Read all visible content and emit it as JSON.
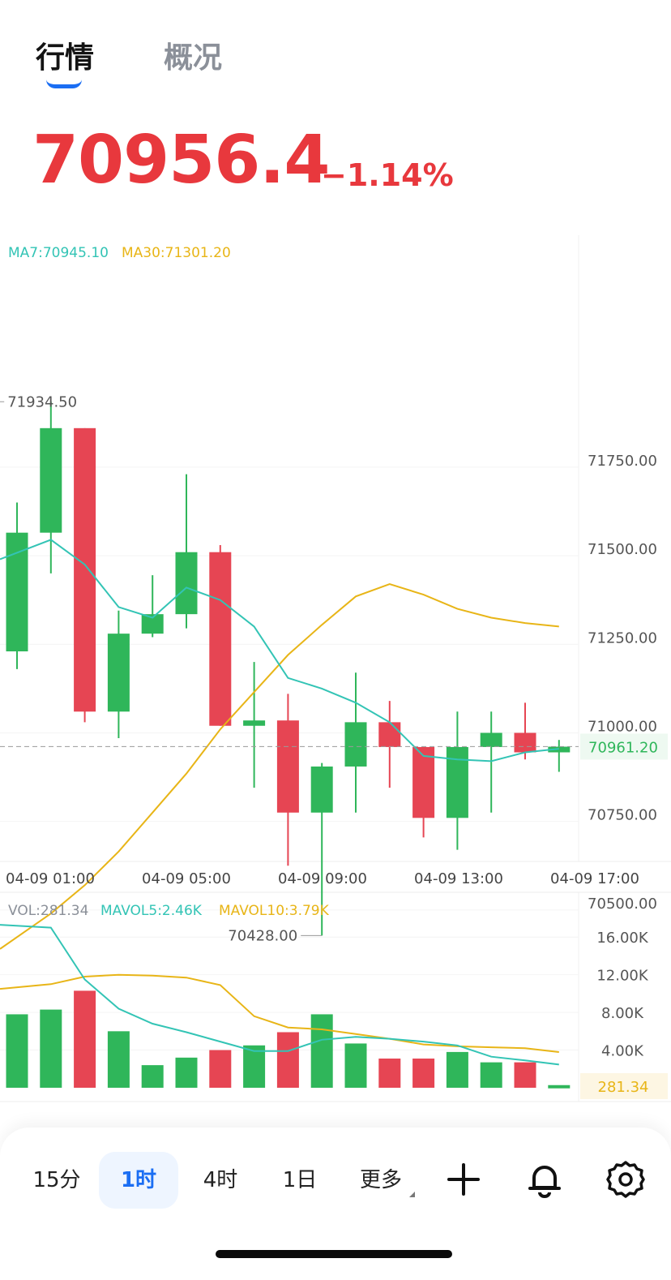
{
  "tabs": {
    "active": "行情",
    "inactive": "概况"
  },
  "price": {
    "last": "70956.4",
    "change": "−1.14%"
  },
  "colors": {
    "up": "#2fb65a",
    "down": "#e64553",
    "ma7": "#33c4b5",
    "ma30": "#e8b517",
    "accent": "#1b6ef3",
    "price": "#e8383d"
  },
  "indicators": {
    "ma7_label": "MA7:70945.10",
    "ma30_label": "MA30:71301.20",
    "vol_label": "VOL:281.34",
    "mavol5_label": "MAVOL5:2.46K",
    "mavol10_label": "MAVOL10:3.79K"
  },
  "chart_data": {
    "type": "candlestick",
    "interval": "1时",
    "price_axis": {
      "range": [
        70320,
        71970
      ],
      "ticks": [
        "71750.00",
        "71500.00",
        "71250.00",
        "71000.00",
        "70750.00",
        "70500.00"
      ],
      "tick_values": [
        71750,
        71500,
        71250,
        71000,
        70750,
        70500
      ]
    },
    "time_axis": [
      "04-09 01:00",
      "04-09 05:00",
      "04-09 09:00",
      "04-09 13:00",
      "04-09 17:00"
    ],
    "current_price_label": "70961.20",
    "current_price": 70961.2,
    "high_label": "71934.50",
    "high_value": 71934.5,
    "low_label": "70428.00",
    "low_value": 70428.0,
    "candles": [
      {
        "o": 71230,
        "h": 71650,
        "l": 71180,
        "c": 71565
      },
      {
        "o": 71565,
        "h": 71935,
        "l": 71450,
        "c": 71860
      },
      {
        "o": 71860,
        "h": 71860,
        "l": 71030,
        "c": 71060
      },
      {
        "o": 71060,
        "h": 71345,
        "l": 70985,
        "c": 71280
      },
      {
        "o": 71280,
        "h": 71445,
        "l": 71270,
        "c": 71335
      },
      {
        "o": 71335,
        "h": 71730,
        "l": 71295,
        "c": 71510
      },
      {
        "o": 71510,
        "h": 71530,
        "l": 71020,
        "c": 71020
      },
      {
        "o": 71020,
        "h": 71200,
        "l": 70845,
        "c": 71035
      },
      {
        "o": 71035,
        "h": 71110,
        "l": 70625,
        "c": 70775
      },
      {
        "o": 70775,
        "h": 70915,
        "l": 70428,
        "c": 70905
      },
      {
        "o": 70905,
        "h": 71170,
        "l": 70775,
        "c": 71030
      },
      {
        "o": 71030,
        "h": 71090,
        "l": 70845,
        "c": 70960
      },
      {
        "o": 70960,
        "h": 70960,
        "l": 70705,
        "c": 70760
      },
      {
        "o": 70760,
        "h": 71060,
        "l": 70670,
        "c": 70960
      },
      {
        "o": 70960,
        "h": 71060,
        "l": 70775,
        "c": 71000
      },
      {
        "o": 71000,
        "h": 71085,
        "l": 70925,
        "c": 70945
      },
      {
        "o": 70945,
        "h": 70980,
        "l": 70890,
        "c": 70961
      }
    ],
    "ma7": [
      71490,
      71545,
      71475,
      71355,
      71325,
      71410,
      71375,
      71300,
      71155,
      71125,
      71085,
      71030,
      70935,
      70925,
      70920,
      70945,
      70955
    ],
    "ma30": [
      70390,
      70490,
      70570,
      70665,
      70775,
      70885,
      71010,
      71115,
      71220,
      71305,
      71385,
      71420,
      71390,
      71350,
      71325,
      71310,
      71300
    ],
    "volume_axis": {
      "range": [
        0,
        18000
      ],
      "ticks": [
        "16.00K",
        "12.00K",
        "8.00K",
        "4.00K"
      ],
      "tick_values": [
        16000,
        12000,
        8000,
        4000
      ]
    },
    "current_volume_label": "281.34",
    "volumes": [
      7800,
      8300,
      10300,
      6000,
      2400,
      3200,
      4000,
      4500,
      5900,
      7800,
      4700,
      3100,
      3100,
      3800,
      2700,
      2700,
      281
    ],
    "mavol5": [
      17300,
      17000,
      11500,
      8400,
      6800,
      5900,
      4900,
      3900,
      3900,
      5100,
      5400,
      5200,
      4900,
      4500,
      3300,
      2900,
      2460
    ],
    "mavol10": [
      10500,
      11000,
      11800,
      12000,
      11900,
      11700,
      10900,
      7600,
      6400,
      6200,
      5700,
      5200,
      4600,
      4400,
      4300,
      4200,
      3790
    ]
  },
  "toolbar": {
    "items": [
      "15分",
      "1时",
      "4时",
      "1日",
      "更多"
    ],
    "icons": [
      "plus-icon",
      "bell-icon",
      "gear-icon"
    ]
  }
}
